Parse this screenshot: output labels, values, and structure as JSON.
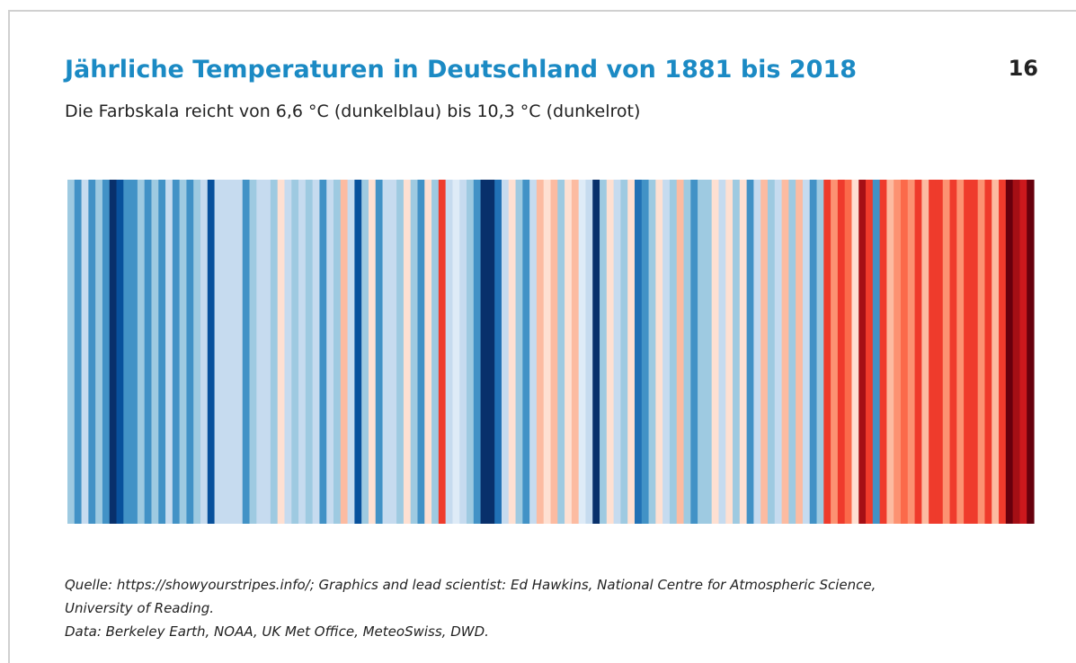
{
  "chart_data": {
    "type": "stripes",
    "title": "Jährliche Temperaturen in Deutschland von 1881 bis 2018",
    "subtitle": "Die Farbskala reicht von 6,6 °C (dunkelblau) bis 10,3 °C (dunkelrot)",
    "page_number": "16",
    "source": [
      "Quelle: https://showyourstripes.info/; Graphics and lead scientist: Ed Hawkins, National Centre for Atmospheric Science,",
      "University of Reading.",
      "Data: Berkeley Earth, NOAA, UK Met Office, MeteoSwiss, DWD."
    ],
    "colorlim": [
      6.6,
      10.3
    ],
    "colors": [
      "#08306b",
      "#08519c",
      "#2171b5",
      "#4292c6",
      "#6baed6",
      "#9ecae1",
      "#c6dbef",
      "#deebf7",
      "#fee0d2",
      "#fcbba1",
      "#fc9272",
      "#fb6a4a",
      "#ef3b2c",
      "#cb181d",
      "#a50f15",
      "#67000d"
    ],
    "values": [
      7.9,
      7.5,
      8.0,
      7.4,
      7.8,
      7.3,
      6.7,
      6.9,
      7.3,
      7.3,
      7.8,
      7.4,
      7.9,
      7.5,
      8.1,
      7.4,
      7.8,
      7.3,
      7.9,
      8.1,
      7.0,
      8.0,
      8.2,
      8.0,
      8.2,
      7.4,
      7.9,
      8.2,
      8.1,
      7.9,
      8.6,
      8.2,
      7.8,
      8.2,
      7.9,
      8.0,
      7.4,
      8.1,
      7.9,
      8.8,
      8.0,
      7.0,
      7.8,
      8.5,
      7.4,
      8.1,
      8.2,
      7.8,
      8.5,
      7.9,
      7.5,
      8.6,
      7.9,
      9.5,
      8.2,
      8.4,
      8.2,
      7.8,
      7.3,
      6.8,
      6.6,
      7.2,
      8.0,
      8.6,
      7.9,
      7.4,
      8.2,
      8.9,
      8.6,
      8.9,
      7.9,
      8.6,
      8.8,
      8.4,
      8.2,
      6.8,
      7.8,
      8.5,
      8.2,
      7.9,
      8.6,
      7.1,
      7.4,
      7.8,
      8.5,
      8.1,
      7.8,
      8.8,
      7.8,
      7.5,
      7.9,
      7.8,
      8.5,
      8.2,
      8.6,
      7.9,
      8.5,
      7.4,
      8.1,
      8.8,
      7.8,
      8.2,
      8.9,
      7.9,
      8.9,
      8.1,
      7.5,
      7.8,
      9.4,
      9.0,
      9.5,
      9.3,
      8.6,
      9.9,
      9.5,
      7.5,
      9.4,
      8.9,
      9.0,
      9.3,
      9.0,
      9.4,
      8.9,
      9.5,
      9.4,
      9.1,
      9.5,
      9.0,
      9.4,
      9.6,
      9.1,
      9.5,
      8.7,
      9.5,
      10.3,
      9.9,
      9.8,
      10.3
    ]
  }
}
